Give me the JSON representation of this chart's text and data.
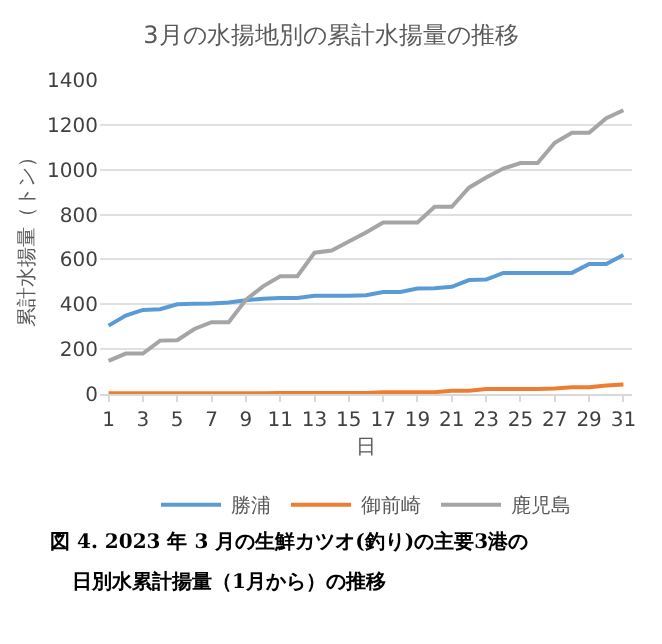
{
  "chart_data": {
    "type": "line",
    "title": "3月の水揚地別の累計水揚量の推移",
    "xlabel": "日",
    "ylabel": "累計水揚量（トン）",
    "x": [
      1,
      2,
      3,
      4,
      5,
      6,
      7,
      8,
      9,
      10,
      11,
      12,
      13,
      14,
      15,
      16,
      17,
      18,
      19,
      20,
      21,
      22,
      23,
      24,
      25,
      26,
      27,
      28,
      29,
      30,
      31
    ],
    "series": [
      {
        "name": "勝浦",
        "color": "#5b9bd5",
        "values": [
          305,
          350,
          375,
          378,
          400,
          402,
          403,
          408,
          418,
          425,
          428,
          428,
          438,
          438,
          438,
          440,
          455,
          455,
          470,
          472,
          478,
          508,
          510,
          540,
          540,
          540,
          540,
          540,
          580,
          580,
          620
        ]
      },
      {
        "name": "御前崎",
        "color": "#ed7d31",
        "values": [
          3,
          3,
          3,
          3,
          3,
          3,
          3,
          3,
          3,
          3,
          5,
          5,
          5,
          5,
          5,
          5,
          8,
          8,
          8,
          8,
          15,
          15,
          22,
          22,
          22,
          22,
          25,
          30,
          30,
          38,
          42
        ]
      },
      {
        "name": "鹿児島",
        "color": "#a5a5a5",
        "values": [
          148,
          180,
          180,
          238,
          240,
          290,
          320,
          320,
          420,
          480,
          525,
          525,
          630,
          640,
          680,
          720,
          765,
          765,
          765,
          835,
          835,
          920,
          965,
          1005,
          1030,
          1030,
          1120,
          1165,
          1165,
          1230,
          1265
        ]
      }
    ],
    "xlim": [
      0.5,
      31.5
    ],
    "xticks": [
      1,
      3,
      5,
      7,
      9,
      11,
      13,
      15,
      17,
      19,
      21,
      23,
      25,
      27,
      29,
      31
    ],
    "ylim": [
      0,
      1400
    ],
    "yticks": [
      0,
      200,
      400,
      600,
      800,
      1000,
      1200,
      1400
    ],
    "grid": "y",
    "legend": "bottom",
    "marker": "none",
    "line_style": "solid",
    "annotations": [
      "図 4. 2023 年 3 月の生鮮カツオ(釣り)の主要3港の",
      "日別水累計揚量（1月から）の推移"
    ]
  }
}
